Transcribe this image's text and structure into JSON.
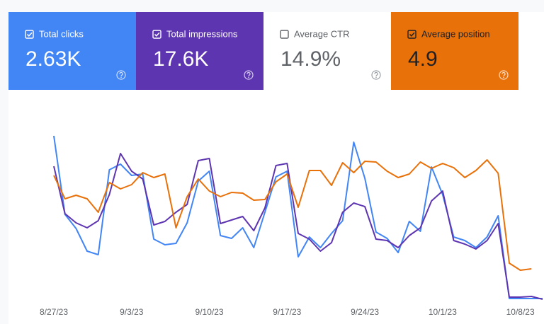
{
  "cards": [
    {
      "label": "Total clicks",
      "value": "2.63K",
      "checked": true,
      "color": "#4285f4"
    },
    {
      "label": "Total impressions",
      "value": "17.6K",
      "checked": true,
      "color": "#5e35b1"
    },
    {
      "label": "Average CTR",
      "value": "14.9%",
      "checked": false,
      "color": "#ffffff"
    },
    {
      "label": "Average position",
      "value": "4.9",
      "checked": true,
      "color": "#e8710a"
    }
  ],
  "chart_data": {
    "type": "line",
    "categories": [
      "8/27/23",
      null,
      null,
      null,
      null,
      null,
      null,
      "9/3/23",
      null,
      null,
      null,
      null,
      null,
      null,
      "9/10/23",
      null,
      null,
      null,
      null,
      null,
      null,
      "9/17/23",
      null,
      null,
      null,
      null,
      null,
      null,
      "9/24/23",
      null,
      null,
      null,
      null,
      null,
      null,
      "10/1/23",
      null,
      null,
      null,
      null,
      null,
      null,
      "10/8/23",
      null,
      null
    ],
    "ylim": [
      0,
      100
    ],
    "series": [
      {
        "color": "#4285f4",
        "values": [
          93.2,
          48.8,
          40.8,
          28,
          26,
          74,
          77.2,
          70.8,
          71.6,
          34.8,
          31.6,
          32.4,
          44,
          67.6,
          73.2,
          36.8,
          35.2,
          41.2,
          30,
          50,
          70,
          73.2,
          24.8,
          36,
          30,
          38,
          45.2,
          89.6,
          69.2,
          38.8,
          35.2,
          27.2,
          44.8,
          39.2,
          75.6,
          60,
          36,
          34,
          30,
          36,
          48,
          1.2,
          1.2,
          1.2,
          1.2
        ]
      },
      {
        "color": "#5e35b1",
        "values": [
          76,
          49.2,
          44,
          41.2,
          45.2,
          60,
          83.2,
          73.2,
          68.8,
          42.8,
          44.8,
          50,
          54.4,
          79.2,
          80.4,
          43.6,
          45.6,
          47.6,
          39.6,
          52.4,
          76.4,
          77.6,
          38,
          34.8,
          28,
          32.8,
          50,
          55.2,
          53.2,
          34.8,
          34,
          30,
          36.8,
          41.2,
          56.4,
          62,
          34,
          32,
          29.2,
          34,
          43.6,
          2,
          2,
          2.4,
          0.8
        ]
      },
      {
        "color": "#e8710a",
        "values": [
          70.8,
          57.6,
          59.6,
          57.6,
          50,
          66.8,
          63.2,
          65.6,
          72.4,
          69.6,
          71.6,
          41.2,
          58.8,
          68.8,
          62,
          58.8,
          61.2,
          60.8,
          56.8,
          57.2,
          67.2,
          71.6,
          52.8,
          73.6,
          73.6,
          65.2,
          78,
          72.4,
          78.8,
          78.4,
          73.2,
          69.6,
          71.6,
          78.4,
          74.8,
          77.6,
          75.2,
          69.6,
          73.6,
          79.6,
          72,
          21.2,
          17.2,
          18,
          null
        ]
      }
    ]
  }
}
